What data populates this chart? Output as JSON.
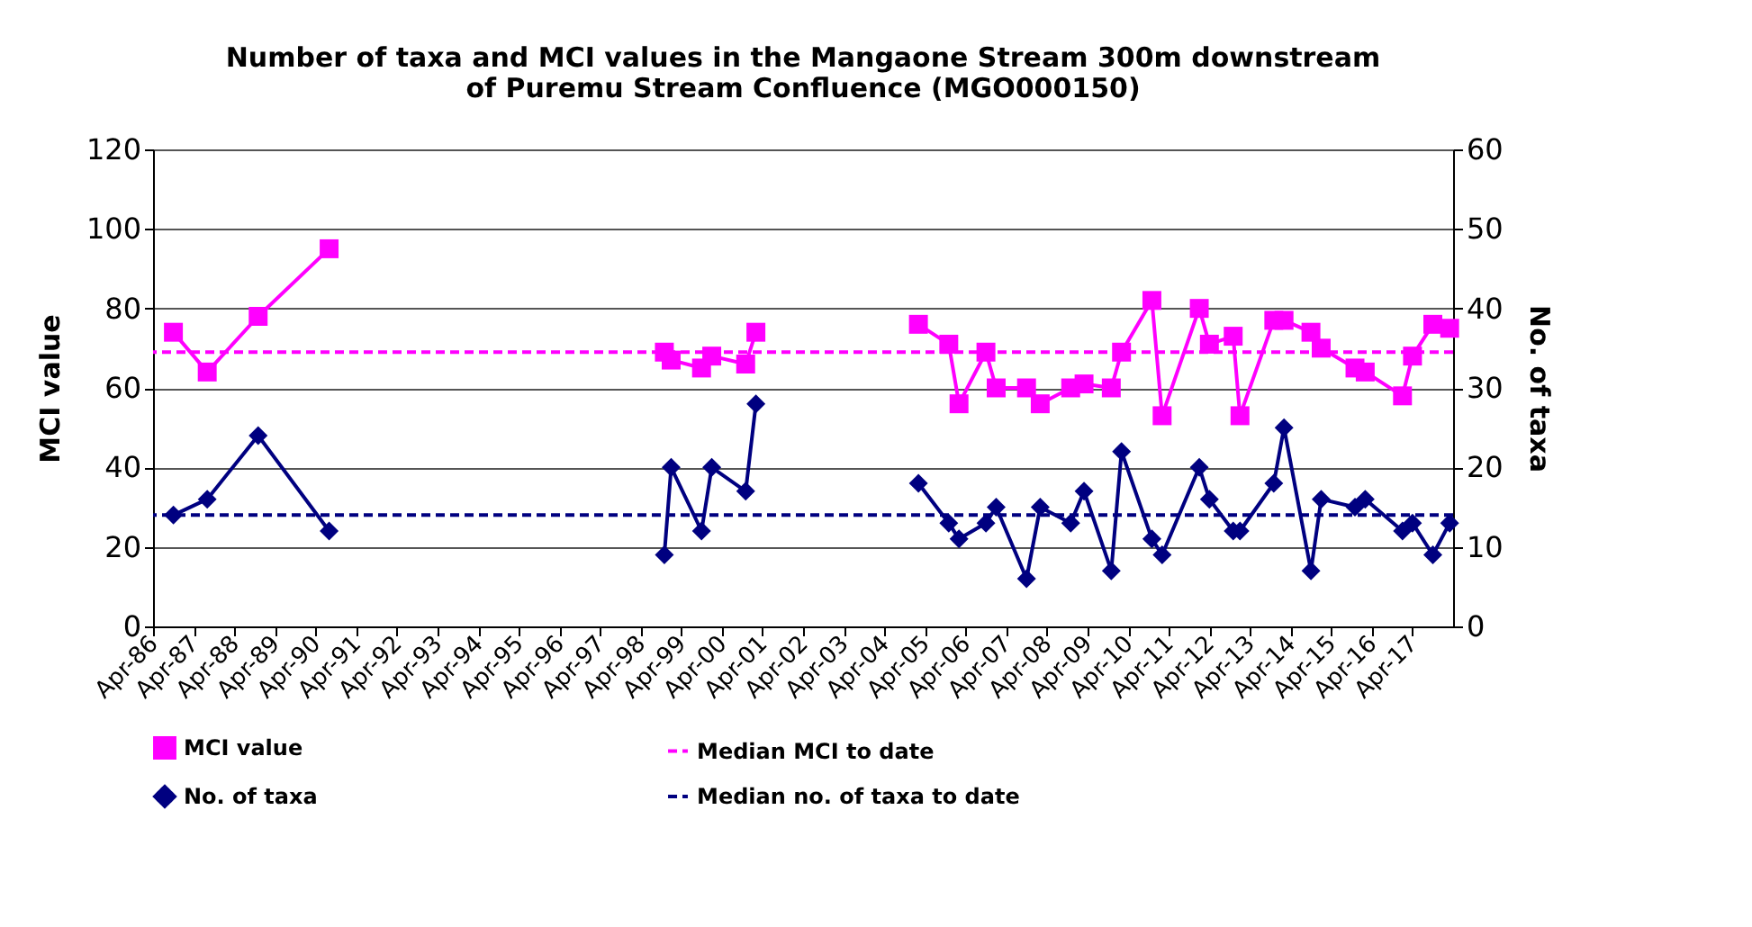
{
  "chart_data": {
    "type": "line",
    "title": "Number of taxa and MCI values in the  Mangaone Stream 300m downstream\nof Puremu Stream Confluence (MGO000150)",
    "ylabel": "MCI value",
    "y2label": "No. of taxa",
    "x": [
      "1986-10",
      "1987-08",
      "1988-11",
      "1990-08",
      "1994-04",
      "1998-11",
      "1999-01",
      "1999-10",
      "2000-01",
      "2000-11",
      "2001-02",
      "2003-04",
      "2005-02",
      "2005-11",
      "2006-02",
      "2006-10",
      "2007-01",
      "2007-10",
      "2008-02",
      "2008-11",
      "2009-03",
      "2009-11",
      "2010-02",
      "2010-11",
      "2011-02",
      "2012-01",
      "2012-04",
      "2012-11",
      "2013-01",
      "2013-11",
      "2014-02",
      "2014-10",
      "2015-01",
      "2015-11",
      "2016-02",
      "2017-01",
      "2017-04",
      "2017-10",
      "2018-03"
    ],
    "series": [
      {
        "name": "MCI value",
        "color": "#ff00ff",
        "marker": "square",
        "values": [
          74,
          64,
          78,
          95,
          null,
          69,
          67,
          65,
          68,
          66,
          74,
          null,
          76,
          71,
          56,
          69,
          60,
          60,
          56,
          60,
          61,
          60,
          69,
          82,
          53,
          80,
          71,
          73,
          53,
          77,
          77,
          74,
          70,
          65,
          64,
          58,
          68,
          76,
          75
        ]
      },
      {
        "name": "No. of taxa",
        "color": "#000080",
        "marker": "diamond",
        "axis": "y2",
        "values": [
          14,
          16,
          24,
          12,
          null,
          9,
          20,
          12,
          20,
          17,
          28,
          null,
          18,
          13,
          11,
          13,
          15,
          6,
          15,
          13,
          17,
          7,
          22,
          11,
          9,
          20,
          16,
          12,
          12,
          18,
          25,
          7,
          16,
          15,
          16,
          12,
          13,
          9,
          13
        ]
      }
    ],
    "ref_lines": [
      {
        "axis": "y",
        "value": 69,
        "label": "Median MCI to date",
        "color": "#ff00ff",
        "line_style": "dashed"
      },
      {
        "axis": "y2",
        "value": 14,
        "label": "Median no. of taxa to date",
        "color": "#000080",
        "line_style": "dashed"
      }
    ],
    "xlim": [
      "1986-04",
      "2018-04"
    ],
    "xticks": [
      {
        "value": "1986-04",
        "label": "Apr-86"
      },
      {
        "value": "1987-04",
        "label": "Apr-87"
      },
      {
        "value": "1988-04",
        "label": "Apr-88"
      },
      {
        "value": "1989-04",
        "label": "Apr-89"
      },
      {
        "value": "1990-04",
        "label": "Apr-90"
      },
      {
        "value": "1991-04",
        "label": "Apr-91"
      },
      {
        "value": "1992-04",
        "label": "Apr-92"
      },
      {
        "value": "1993-04",
        "label": "Apr-93"
      },
      {
        "value": "1994-04",
        "label": "Apr-94"
      },
      {
        "value": "1995-04",
        "label": "Apr-95"
      },
      {
        "value": "1996-04",
        "label": "Apr-96"
      },
      {
        "value": "1997-04",
        "label": "Apr-97"
      },
      {
        "value": "1998-04",
        "label": "Apr-98"
      },
      {
        "value": "1999-04",
        "label": "Apr-99"
      },
      {
        "value": "2000-04",
        "label": "Apr-00"
      },
      {
        "value": "2001-04",
        "label": "Apr-01"
      },
      {
        "value": "2002-04",
        "label": "Apr-02"
      },
      {
        "value": "2003-04",
        "label": "Apr-03"
      },
      {
        "value": "2004-04",
        "label": "Apr-04"
      },
      {
        "value": "2005-04",
        "label": "Apr-05"
      },
      {
        "value": "2006-04",
        "label": "Apr-06"
      },
      {
        "value": "2007-04",
        "label": "Apr-07"
      },
      {
        "value": "2008-04",
        "label": "Apr-08"
      },
      {
        "value": "2009-04",
        "label": "Apr-09"
      },
      {
        "value": "2010-04",
        "label": "Apr-10"
      },
      {
        "value": "2011-04",
        "label": "Apr-11"
      },
      {
        "value": "2012-04",
        "label": "Apr-12"
      },
      {
        "value": "2013-04",
        "label": "Apr-13"
      },
      {
        "value": "2014-04",
        "label": "Apr-14"
      },
      {
        "value": "2015-04",
        "label": "Apr-15"
      },
      {
        "value": "2016-04",
        "label": "Apr-16"
      },
      {
        "value": "2017-04",
        "label": "Apr-17"
      }
    ],
    "ylim": [
      0,
      120
    ],
    "yticks": [
      0,
      20,
      40,
      60,
      80,
      100,
      120
    ],
    "y2lim": [
      0,
      60
    ],
    "y2ticks": [
      0,
      10,
      20,
      30,
      40,
      50,
      60
    ],
    "grid": "y",
    "legend": "bottom",
    "line_style": "solid"
  }
}
